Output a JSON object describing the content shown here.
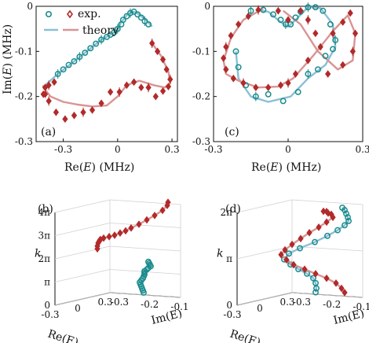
{
  "colors": {
    "teal": "#1a8c8c",
    "red": "#b22a2a",
    "teal_theory": "#8cbfd6",
    "red_theory": "#d99494"
  },
  "legend": {
    "exp": "exp.",
    "theory": "theory"
  },
  "chart_data": [
    {
      "panel": "(a)",
      "type": "scatter",
      "xlabel": "Re(E) (MHz)",
      "ylabel": "Im(E) (MHz)",
      "xlim": [
        -0.45,
        0.33
      ],
      "ylim": [
        -0.3,
        0.0
      ],
      "xticks": [
        "-0.3",
        "0",
        "0.3"
      ],
      "yticks": [
        "0",
        "-0.1",
        "-0.2",
        "-0.3"
      ],
      "series": [
        {
          "name": "exp.",
          "color": "teal",
          "marker": "circle",
          "x": [
            -0.33,
            -0.3,
            -0.27,
            -0.24,
            -0.21,
            -0.18,
            -0.15,
            -0.12,
            -0.09,
            -0.06,
            -0.04,
            -0.02,
            0.0,
            0.02,
            0.03,
            0.05,
            0.07,
            0.09,
            0.11,
            0.13,
            0.15,
            0.17
          ],
          "y": [
            -0.15,
            -0.14,
            -0.13,
            -0.122,
            -0.112,
            -0.103,
            -0.093,
            -0.083,
            -0.074,
            -0.068,
            -0.063,
            -0.058,
            -0.05,
            -0.04,
            -0.03,
            -0.022,
            -0.015,
            -0.012,
            -0.018,
            -0.025,
            -0.033,
            -0.04
          ]
        },
        {
          "name": "exp.",
          "color": "red",
          "marker": "diamond",
          "x": [
            0.19,
            0.22,
            0.25,
            0.27,
            0.29,
            0.28,
            0.25,
            0.21,
            0.17,
            0.13,
            0.09,
            0.05,
            0.01,
            -0.04,
            -0.09,
            -0.14,
            -0.19,
            -0.24,
            -0.29,
            -0.34,
            -0.38,
            -0.4,
            -0.41,
            -0.4,
            -0.38,
            -0.35
          ],
          "y": [
            -0.082,
            -0.1,
            -0.118,
            -0.14,
            -0.162,
            -0.178,
            -0.188,
            -0.2,
            -0.18,
            -0.18,
            -0.168,
            -0.175,
            -0.19,
            -0.19,
            -0.215,
            -0.23,
            -0.235,
            -0.242,
            -0.25,
            -0.235,
            -0.21,
            -0.195,
            -0.195,
            -0.18,
            -0.175,
            -0.168
          ]
        }
      ],
      "theory": [
        {
          "color": "teal_theory",
          "x": [
            -0.4,
            -0.33,
            -0.25,
            -0.17,
            -0.1,
            -0.04,
            0.0,
            0.02,
            0.05,
            0.08,
            0.1,
            0.13,
            0.16,
            0.19
          ],
          "y": [
            -0.175,
            -0.15,
            -0.125,
            -0.1,
            -0.077,
            -0.063,
            -0.052,
            -0.035,
            -0.02,
            -0.012,
            -0.013,
            -0.022,
            -0.032,
            -0.045
          ]
        },
        {
          "color": "red_theory",
          "x": [
            0.19,
            0.24,
            0.28,
            0.29,
            0.26,
            0.2,
            0.12,
            0.05,
            0.0,
            -0.06,
            -0.14,
            -0.22,
            -0.3,
            -0.37,
            -0.41,
            -0.41
          ],
          "y": [
            -0.082,
            -0.11,
            -0.145,
            -0.17,
            -0.18,
            -0.175,
            -0.165,
            -0.175,
            -0.2,
            -0.22,
            -0.222,
            -0.218,
            -0.212,
            -0.2,
            -0.18,
            -0.175
          ]
        }
      ]
    },
    {
      "panel": "(c)",
      "type": "scatter",
      "xlabel": "Re(E) (MHz)",
      "ylabel": "",
      "xlim": [
        -0.3,
        0.3
      ],
      "ylim": [
        -0.3,
        0.0
      ],
      "xticks": [
        "-0.3",
        "0",
        "0.3"
      ],
      "yticks": [
        "0",
        "-0.1",
        "-0.2",
        "-0.3"
      ],
      "series": [
        {
          "name": "exp.",
          "color": "teal",
          "marker": "circle",
          "x": [
            -0.15,
            -0.1,
            -0.06,
            -0.03,
            -0.01,
            0.01,
            0.03,
            0.05,
            0.08,
            0.11,
            0.14,
            0.17,
            0.19,
            0.18,
            0.15,
            0.12,
            0.08,
            0.04,
            -0.02,
            -0.08,
            -0.13,
            -0.17,
            -0.2,
            -0.21
          ],
          "y": [
            -0.01,
            -0.008,
            -0.018,
            -0.03,
            -0.04,
            -0.04,
            -0.025,
            -0.012,
            -0.002,
            -0.002,
            -0.01,
            -0.04,
            -0.075,
            -0.095,
            -0.11,
            -0.14,
            -0.15,
            -0.19,
            -0.21,
            -0.195,
            -0.2,
            -0.175,
            -0.135,
            -0.1
          ]
        },
        {
          "name": "exp.",
          "color": "red",
          "marker": "diamond",
          "x": [
            -0.12,
            -0.16,
            -0.2,
            -0.23,
            -0.25,
            -0.26,
            -0.25,
            -0.22,
            -0.18,
            -0.13,
            -0.08,
            -0.03,
            0.0,
            0.03,
            0.08,
            0.13,
            0.18,
            0.22,
            0.25,
            0.27,
            0.26,
            0.22,
            0.16,
            0.11,
            0.08,
            0.05,
            0.0,
            -0.04
          ],
          "y": [
            -0.008,
            -0.022,
            -0.04,
            -0.065,
            -0.09,
            -0.115,
            -0.14,
            -0.16,
            -0.17,
            -0.18,
            -0.18,
            -0.175,
            -0.17,
            -0.15,
            -0.12,
            -0.09,
            -0.06,
            -0.035,
            -0.015,
            -0.06,
            -0.1,
            -0.13,
            -0.15,
            -0.06,
            -0.03,
            -0.01,
            -0.03,
            -0.01
          ]
        }
      ],
      "theory": [
        {
          "color": "teal_theory",
          "x": [
            -0.13,
            -0.08,
            -0.03,
            0.0,
            0.03,
            0.08,
            0.13,
            0.18,
            0.19,
            0.15,
            0.08,
            0.01,
            -0.08,
            -0.15,
            -0.2,
            -0.21
          ],
          "y": [
            -0.008,
            -0.012,
            -0.035,
            -0.045,
            -0.03,
            -0.002,
            -0.004,
            -0.04,
            -0.09,
            -0.13,
            -0.16,
            -0.2,
            -0.212,
            -0.2,
            -0.16,
            -0.1
          ]
        },
        {
          "color": "red_theory",
          "x": [
            -0.1,
            -0.18,
            -0.23,
            -0.26,
            -0.25,
            -0.2,
            -0.12,
            -0.04,
            0.02,
            0.1,
            0.18,
            0.24,
            0.27,
            0.26,
            0.2,
            0.12,
            0.05,
            -0.02
          ],
          "y": [
            -0.005,
            -0.03,
            -0.07,
            -0.12,
            -0.15,
            -0.165,
            -0.18,
            -0.178,
            -0.16,
            -0.11,
            -0.055,
            -0.02,
            -0.06,
            -0.12,
            -0.14,
            -0.1,
            -0.04,
            -0.01
          ]
        }
      ]
    },
    {
      "panel": "(b)",
      "type": "line",
      "xlabel": "Re(E)",
      "ylabel": "Im(E)",
      "zlabel": "k",
      "xticks": [
        "-0.3",
        "0",
        "0.3"
      ],
      "yticks": [
        "-0.3",
        "-0.2",
        "-0.1"
      ],
      "zticks": [
        "0",
        "π",
        "2π",
        "3π",
        "4π"
      ],
      "series": [
        {
          "name": "teal",
          "color": "teal",
          "marker": "circle",
          "x": [
            0.27,
            0.26,
            0.25,
            0.24,
            0.23,
            0.22,
            0.21,
            0.2,
            0.18,
            0.16,
            0.13,
            0.1,
            0.07,
            0.03,
            0.0,
            -0.04,
            -0.08,
            -0.12
          ],
          "y": [
            -0.18,
            -0.18,
            -0.18,
            -0.18,
            -0.18,
            -0.18,
            -0.17,
            -0.16,
            -0.15,
            -0.14,
            -0.13,
            -0.12,
            -0.1,
            -0.08,
            -0.06,
            -0.05,
            -0.04,
            -0.03
          ],
          "z": [
            0.2,
            0.5,
            0.8,
            1.1,
            1.4,
            1.7,
            2.0,
            2.3,
            2.6,
            2.9,
            3.2,
            3.5,
            3.8,
            4.1,
            4.4,
            4.7,
            5.0,
            5.3
          ]
        },
        {
          "name": "red",
          "color": "red",
          "marker": "diamond",
          "x": [
            -0.35,
            -0.32,
            -0.28,
            -0.24,
            -0.2,
            -0.16,
            -0.12,
            -0.08,
            -0.04,
            0.0,
            0.04,
            0.08,
            0.12,
            0.16,
            0.2,
            0.24,
            0.27,
            0.28
          ],
          "y": [
            -0.17,
            -0.18,
            -0.19,
            -0.2,
            -0.21,
            -0.22,
            -0.22,
            -0.21,
            -0.2,
            -0.19,
            -0.18,
            -0.17,
            -0.15,
            -0.13,
            -0.11,
            -0.09,
            -0.08,
            -0.08
          ],
          "z": [
            7.6,
            7.9,
            8.2,
            8.3,
            8.4,
            8.4,
            8.5,
            8.6,
            8.7,
            8.9,
            9.1,
            9.4,
            9.8,
            10.3,
            10.8,
            11.4,
            12.0,
            12.4
          ]
        }
      ]
    },
    {
      "panel": "(d)",
      "type": "line",
      "xlabel": "Re(E)",
      "ylabel": "Im(E)",
      "zlabel": "k",
      "xticks": [
        "-0.3",
        "0",
        "0.3"
      ],
      "yticks": [
        "-0.3",
        "-0.2",
        "-0.1"
      ],
      "zticks": [
        "0",
        "π",
        "2π"
      ],
      "series": [
        {
          "name": "teal",
          "color": "teal",
          "marker": "circle",
          "x": [
            0.2,
            0.18,
            0.14,
            0.08,
            0.0,
            -0.08,
            -0.15,
            -0.2,
            -0.2,
            -0.15,
            -0.05,
            0.05,
            0.12,
            0.15,
            0.14,
            0.1,
            0.05,
            0.0,
            -0.03
          ],
          "y": [
            -0.2,
            -0.19,
            -0.18,
            -0.17,
            -0.17,
            -0.18,
            -0.19,
            -0.2,
            -0.18,
            -0.15,
            -0.12,
            -0.1,
            -0.08,
            -0.06,
            -0.04,
            -0.03,
            -0.02,
            -0.01,
            -0.01
          ],
          "z": [
            0.2,
            0.5,
            0.9,
            1.3,
            1.7,
            2.1,
            2.5,
            2.9,
            3.3,
            3.6,
            3.9,
            4.2,
            4.5,
            4.8,
            5.1,
            5.4,
            5.7,
            6.0,
            6.2
          ]
        },
        {
          "name": "red",
          "color": "red",
          "marker": "diamond",
          "x": [
            0.27,
            0.26,
            0.22,
            0.16,
            0.08,
            0.0,
            -0.08,
            -0.14,
            -0.18,
            -0.16,
            -0.1,
            -0.02,
            0.06,
            0.12,
            0.16,
            0.18,
            0.1,
            0.0,
            -0.08,
            -0.15
          ],
          "y": [
            -0.1,
            -0.11,
            -0.12,
            -0.14,
            -0.16,
            -0.18,
            -0.2,
            -0.21,
            -0.22,
            -0.21,
            -0.2,
            -0.19,
            -0.18,
            -0.16,
            -0.14,
            -0.12,
            -0.1,
            -0.08,
            -0.06,
            -0.05
          ],
          "z": [
            0.1,
            0.4,
            0.8,
            1.2,
            1.6,
            2.0,
            2.4,
            2.8,
            3.2,
            3.5,
            3.8,
            4.1,
            4.4,
            4.7,
            5.0,
            5.3,
            5.6,
            5.8,
            6.0,
            6.1
          ]
        }
      ]
    }
  ]
}
